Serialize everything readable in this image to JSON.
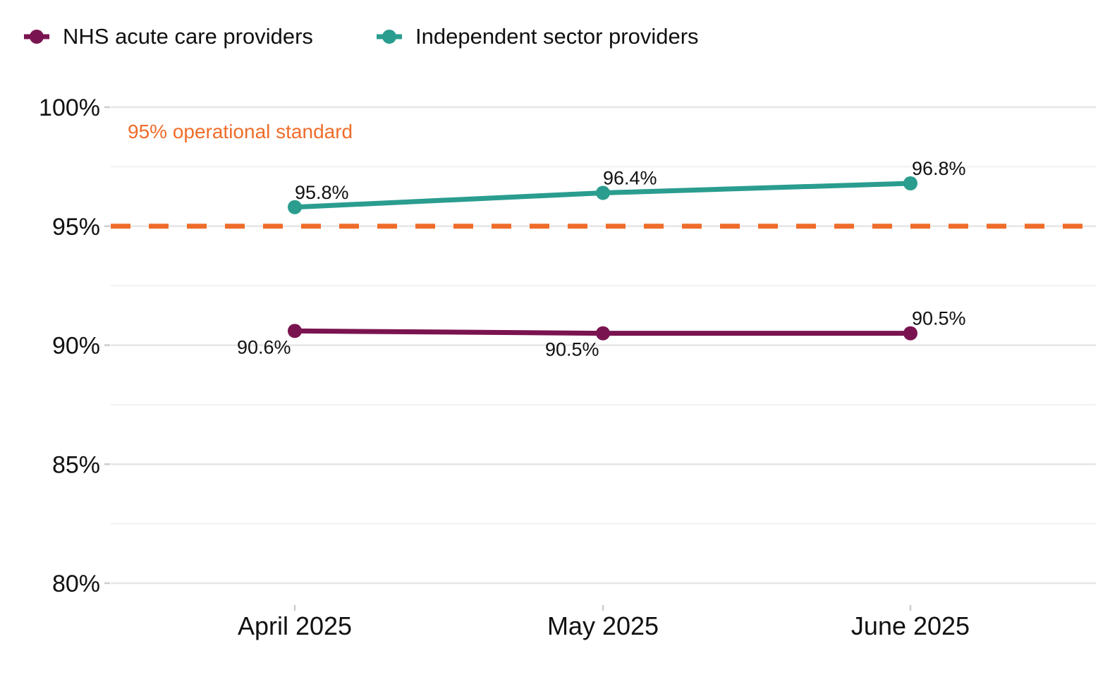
{
  "chart_data": {
    "type": "line",
    "categories": [
      "April 2025",
      "May 2025",
      "June 2025"
    ],
    "series": [
      {
        "name": "NHS acute care providers",
        "values": [
          90.6,
          90.5,
          90.5
        ],
        "labels": [
          "90.6%",
          "90.5%",
          "90.5%"
        ],
        "color": "#7a1450"
      },
      {
        "name": "Independent sector providers",
        "values": [
          95.8,
          96.4,
          96.8
        ],
        "labels": [
          "95.8%",
          "96.4%",
          "96.8%"
        ],
        "color": "#2a9d8f"
      }
    ],
    "reference_line": {
      "value": 95,
      "label": "95% operational standard",
      "color": "#ef6c2a",
      "style": "dashed"
    },
    "ylim": [
      80,
      100
    ],
    "y_ticks": [
      80,
      85,
      90,
      95,
      100
    ],
    "y_tick_labels": [
      "80%",
      "85%",
      "90%",
      "95%",
      "100%"
    ],
    "title": "",
    "xlabel": "",
    "ylabel": "",
    "grid": true,
    "legend_position": "top-left"
  }
}
